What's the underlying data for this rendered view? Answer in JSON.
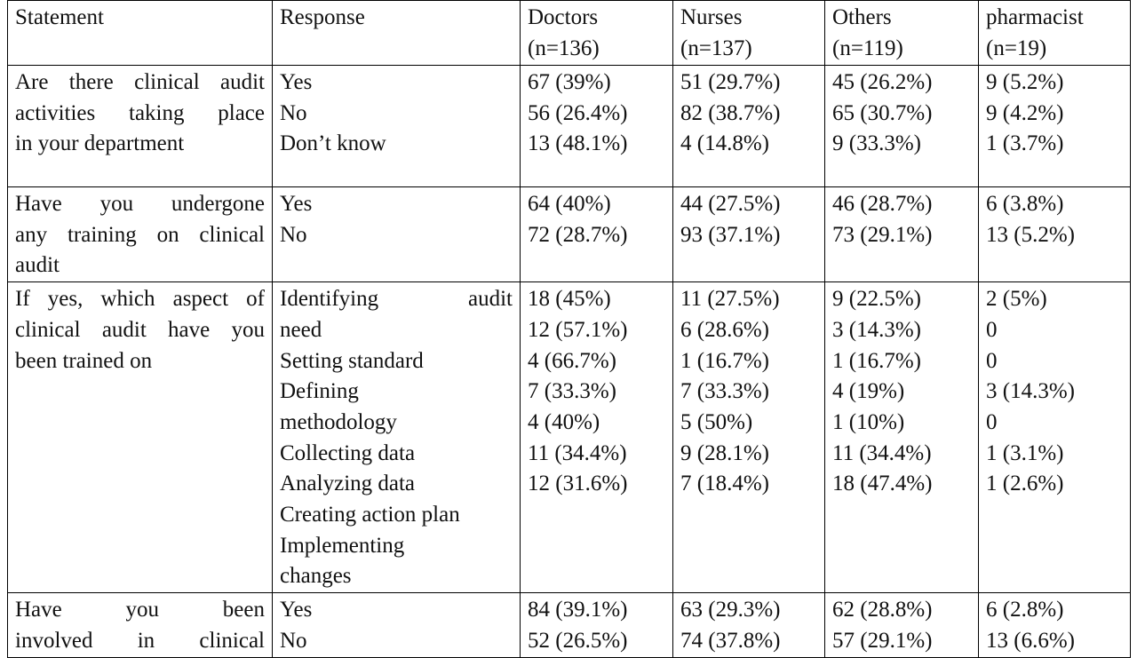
{
  "headers": {
    "statement": "Statement",
    "response": "Response",
    "doctors": [
      "Doctors",
      "(n=136)"
    ],
    "nurses": [
      "Nurses",
      "(n=137)"
    ],
    "others": [
      "Others",
      "(n=119)"
    ],
    "pharmacist": [
      "pharmacist",
      "(n=19)"
    ]
  },
  "rows": [
    {
      "statement": [
        "Are there clinical audit",
        "activities taking place",
        "in your department"
      ],
      "responses": [
        "Yes",
        "No",
        "Don’t know"
      ],
      "doctors": [
        "67 (39%)",
        "56 (26.4%)",
        "13 (48.1%)"
      ],
      "nurses": [
        "51 (29.7%)",
        "82 (38.7%)",
        "4 (14.8%)"
      ],
      "others": [
        "45 (26.2%)",
        "65 (30.7%)",
        "9 (33.3%)"
      ],
      "pharmacist": [
        "9 (5.2%)",
        "9 (4.2%)",
        "1 (3.7%)"
      ]
    },
    {
      "statement": [
        "Have you undergone",
        "any training on clinical",
        "audit"
      ],
      "responses": [
        "Yes",
        "No"
      ],
      "doctors": [
        "64 (40%)",
        "72 (28.7%)"
      ],
      "nurses": [
        "44 (27.5%)",
        "93 (37.1%)"
      ],
      "others": [
        "46 (28.7%)",
        "73 (29.1%)"
      ],
      "pharmacist": [
        "6 (3.8%)",
        "13 (5.2%)"
      ]
    },
    {
      "statement": [
        "If yes, which aspect of",
        "clinical audit have you",
        "been trained on"
      ],
      "responses": [
        "Identifying audit",
        "need",
        "Setting standard",
        "Defining",
        "methodology",
        "Collecting data",
        "Analyzing data",
        "Creating action plan",
        "Implementing",
        "changes"
      ],
      "doctors": [
        "18 (45%)",
        "12 (57.1%)",
        "4 (66.7%)",
        "7 (33.3%)",
        "4 (40%)",
        "11 (34.4%)",
        "12 (31.6%)"
      ],
      "nurses": [
        "11 (27.5%)",
        "6 (28.6%)",
        "1 (16.7%)",
        "7 (33.3%)",
        "5 (50%)",
        "9 (28.1%)",
        "7 (18.4%)"
      ],
      "others": [
        "9 (22.5%)",
        "3 (14.3%)",
        "1 (16.7%)",
        "4 (19%)",
        "1 (10%)",
        "11 (34.4%)",
        "18 (47.4%)"
      ],
      "pharmacist": [
        "2 (5%)",
        "0",
        "0",
        "3 (14.3%)",
        "0",
        "1 (3.1%)",
        "1 (2.6%)"
      ]
    },
    {
      "statement": [
        "Have you been",
        "involved in clinical"
      ],
      "responses": [
        "Yes",
        "No"
      ],
      "doctors": [
        "84 (39.1%)",
        "52 (26.5%)"
      ],
      "nurses": [
        "63 (29.3%)",
        "74 (37.8%)"
      ],
      "others": [
        "62 (28.8%)",
        "57 (29.1%)"
      ],
      "pharmacist": [
        "6 (2.8%)",
        "13 (6.6%)"
      ]
    }
  ]
}
